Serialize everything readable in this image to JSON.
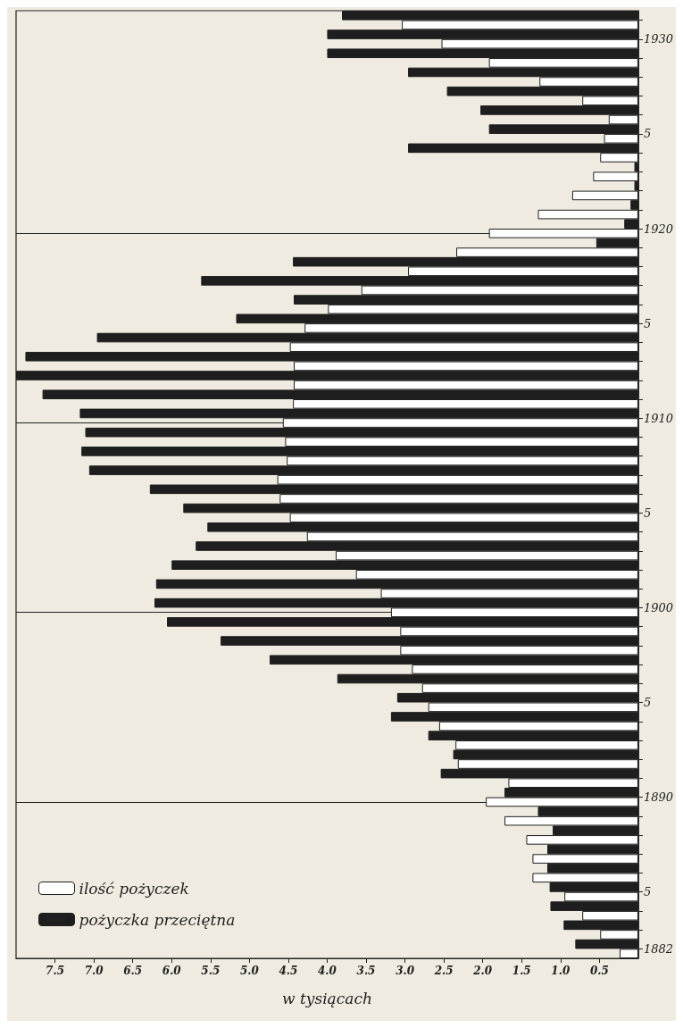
{
  "chart_data": {
    "type": "bar",
    "orientation": "horizontal",
    "xlabel": "w tysiącach",
    "categories": [
      null,
      "1930",
      null,
      null,
      null,
      null,
      "5",
      null,
      null,
      null,
      null,
      "1920",
      null,
      null,
      null,
      null,
      "5",
      null,
      null,
      null,
      null,
      "1910",
      null,
      null,
      null,
      null,
      "5",
      null,
      null,
      null,
      null,
      "1900",
      null,
      null,
      null,
      null,
      "5",
      null,
      null,
      null,
      null,
      "1890",
      null,
      null,
      null,
      null,
      "5",
      null,
      null,
      "1882"
    ],
    "series": [
      {
        "name": "ilość pożyczek",
        "color": "#ffffff",
        "values": [
          3.04,
          2.53,
          1.92,
          1.27,
          0.72,
          0.38,
          0.44,
          0.49,
          0.58,
          0.85,
          1.29,
          1.92,
          2.34,
          2.96,
          3.56,
          3.99,
          4.29,
          4.48,
          4.43,
          4.43,
          4.44,
          4.57,
          4.54,
          4.52,
          4.64,
          4.61,
          4.48,
          4.26,
          3.89,
          3.63,
          3.31,
          3.18,
          3.06,
          3.06,
          2.91,
          2.78,
          2.7,
          2.56,
          2.35,
          2.32,
          1.67,
          1.96,
          1.72,
          1.44,
          1.36,
          1.36,
          0.95,
          0.72,
          0.49,
          0.24
        ]
      },
      {
        "name": "pożyczka przeciętna",
        "color": "#1e1e1e",
        "values": [
          3.81,
          4.0,
          4.0,
          2.96,
          2.46,
          2.03,
          1.92,
          2.96,
          0.05,
          0.05,
          0.1,
          0.18,
          0.54,
          4.44,
          5.62,
          4.43,
          5.17,
          6.96,
          7.88,
          8.0,
          7.66,
          7.18,
          7.11,
          7.16,
          7.06,
          6.28,
          5.85,
          5.54,
          5.69,
          6.0,
          6.2,
          6.22,
          6.06,
          5.37,
          4.74,
          3.87,
          3.1,
          3.18,
          2.7,
          2.38,
          2.54,
          1.72,
          1.29,
          1.1,
          1.17,
          1.17,
          1.14,
          1.13,
          0.96,
          0.81
        ]
      }
    ],
    "xlim": [
      8,
      0
    ],
    "xticks": [
      {
        "value": 7.5,
        "label": "7.5"
      },
      {
        "value": 7,
        "label": "7.0"
      },
      {
        "value": 6.5,
        "label": "6.5"
      },
      {
        "value": 6,
        "label": "6.0"
      },
      {
        "value": 5.5,
        "label": "5.5"
      },
      {
        "value": 5,
        "label": "5.0"
      },
      {
        "value": 4.5,
        "label": "4.5"
      },
      {
        "value": 4,
        "label": "4.0"
      },
      {
        "value": 3.5,
        "label": "3.5"
      },
      {
        "value": 3,
        "label": "3.0"
      },
      {
        "value": 2.5,
        "label": "2.5"
      },
      {
        "value": 2,
        "label": "2.0"
      },
      {
        "value": 1.5,
        "label": "1.5"
      },
      {
        "value": 1,
        "label": "1.0"
      },
      {
        "value": 0.5,
        "label": "0.5"
      }
    ],
    "ref_lines": [
      {
        "axis": "y",
        "value": "1920"
      },
      {
        "axis": "y",
        "value": "1910"
      },
      {
        "axis": "y",
        "value": "1900"
      },
      {
        "axis": "y",
        "value": "1890"
      }
    ],
    "legend": "bottom left",
    "grid": false
  }
}
